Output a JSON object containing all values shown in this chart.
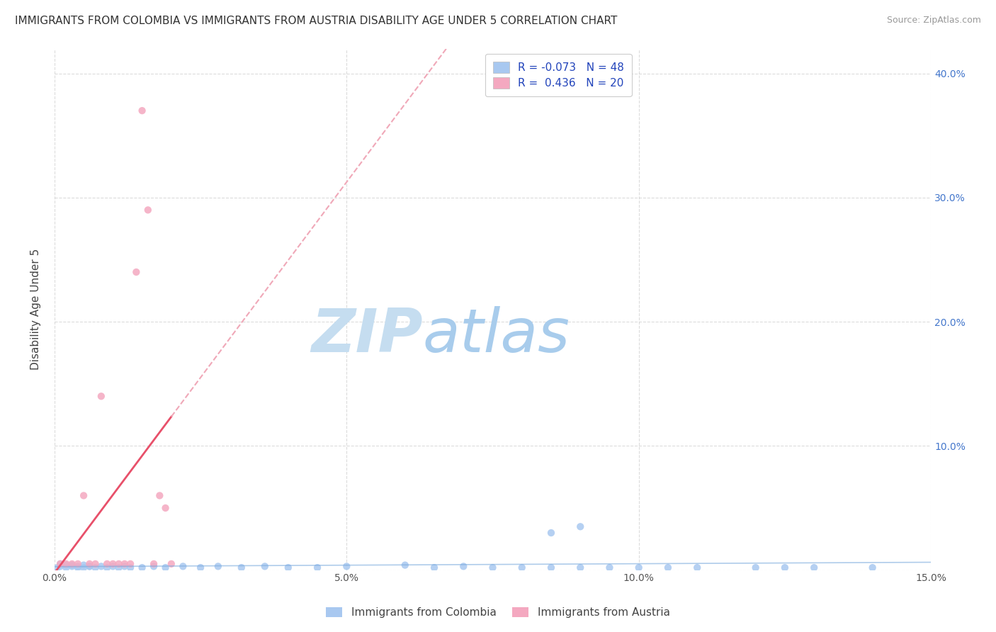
{
  "title": "IMMIGRANTS FROM COLOMBIA VS IMMIGRANTS FROM AUSTRIA DISABILITY AGE UNDER 5 CORRELATION CHART",
  "source": "Source: ZipAtlas.com",
  "ylabel": "Disability Age Under 5",
  "legend_r": [
    -0.073,
    0.436
  ],
  "legend_n": [
    48,
    20
  ],
  "colombia_color": "#a8c8f0",
  "austria_color": "#f4a8c0",
  "colombia_line_color": "#7aaadd",
  "austria_line_color": "#e8506a",
  "austria_dash_color": "#f0a8b8",
  "xlim": [
    0.0,
    0.15
  ],
  "ylim": [
    0.0,
    0.42
  ],
  "xticks": [
    0.0,
    0.05,
    0.1,
    0.15
  ],
  "yticks": [
    0.0,
    0.1,
    0.2,
    0.3,
    0.4
  ],
  "xticklabels": [
    "0.0%",
    "5.0%",
    "10.0%",
    "15.0%"
  ],
  "yticklabels_right": [
    "",
    "10.0%",
    "20.0%",
    "30.0%",
    "40.0%"
  ],
  "colombia_x": [
    0.0005,
    0.001,
    0.001,
    0.002,
    0.002,
    0.003,
    0.003,
    0.004,
    0.004,
    0.005,
    0.005,
    0.006,
    0.006,
    0.007,
    0.008,
    0.009,
    0.01,
    0.011,
    0.012,
    0.013,
    0.015,
    0.017,
    0.019,
    0.022,
    0.025,
    0.028,
    0.032,
    0.036,
    0.04,
    0.045,
    0.05,
    0.06,
    0.065,
    0.07,
    0.075,
    0.08,
    0.085,
    0.09,
    0.095,
    0.1,
    0.105,
    0.11,
    0.12,
    0.125,
    0.085,
    0.09,
    0.13,
    0.14
  ],
  "colombia_y": [
    0.002,
    0.003,
    0.005,
    0.002,
    0.004,
    0.003,
    0.004,
    0.002,
    0.003,
    0.002,
    0.004,
    0.003,
    0.003,
    0.002,
    0.003,
    0.002,
    0.003,
    0.002,
    0.003,
    0.002,
    0.002,
    0.003,
    0.002,
    0.003,
    0.002,
    0.003,
    0.002,
    0.003,
    0.002,
    0.002,
    0.003,
    0.004,
    0.002,
    0.003,
    0.002,
    0.002,
    0.002,
    0.002,
    0.002,
    0.002,
    0.002,
    0.002,
    0.002,
    0.002,
    0.03,
    0.035,
    0.002,
    0.002
  ],
  "austria_x": [
    0.001,
    0.002,
    0.003,
    0.004,
    0.005,
    0.006,
    0.007,
    0.008,
    0.009,
    0.01,
    0.011,
    0.012,
    0.013,
    0.014,
    0.015,
    0.016,
    0.017,
    0.018,
    0.019,
    0.02
  ],
  "austria_y": [
    0.005,
    0.005,
    0.005,
    0.005,
    0.06,
    0.005,
    0.005,
    0.14,
    0.005,
    0.005,
    0.005,
    0.005,
    0.005,
    0.24,
    0.37,
    0.29,
    0.005,
    0.06,
    0.05,
    0.005
  ],
  "background_color": "#ffffff",
  "grid_color": "#cccccc",
  "watermark_color": "#d0e8f8",
  "title_fontsize": 11,
  "tick_fontsize": 10,
  "legend_fontsize": 11,
  "source_fontsize": 9
}
